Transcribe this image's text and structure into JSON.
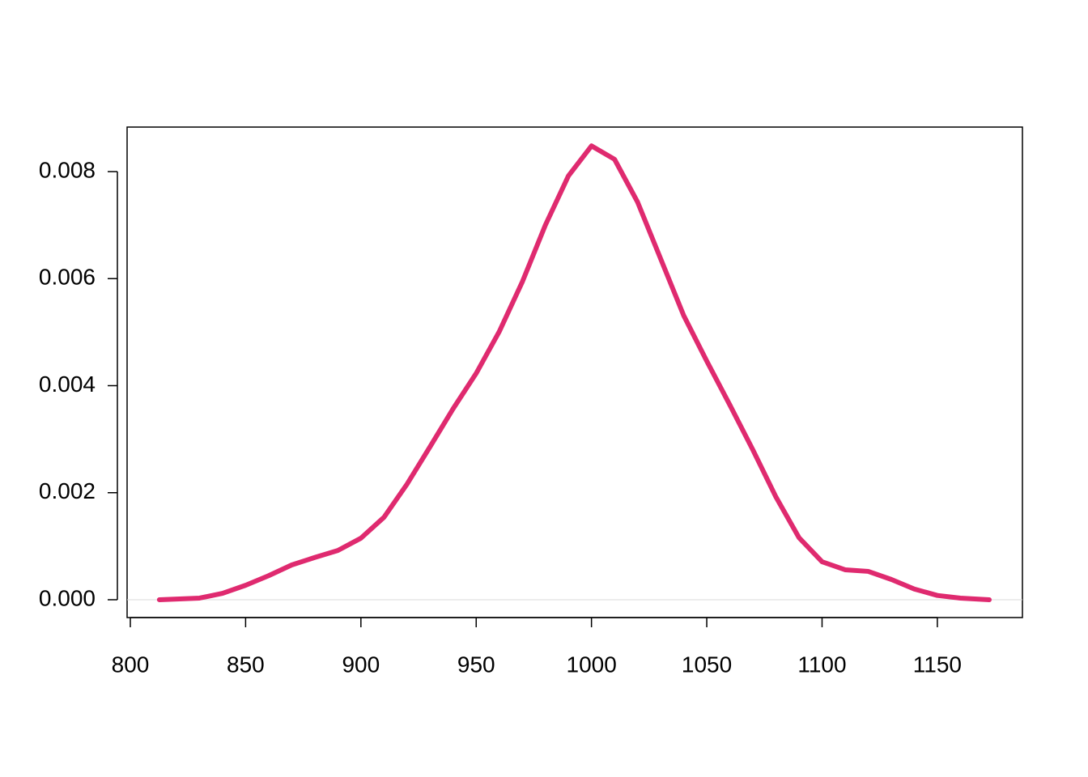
{
  "chart_data": {
    "type": "line",
    "x": [
      812.6,
      830,
      840,
      850,
      860,
      870,
      880,
      890,
      900,
      910,
      920,
      930,
      940,
      950,
      960,
      970,
      980,
      990,
      1000,
      1010,
      1020,
      1030,
      1040,
      1050,
      1060,
      1070,
      1080,
      1090,
      1100,
      1110,
      1120,
      1130,
      1140,
      1150,
      1160,
      1172.5
    ],
    "series": [
      {
        "color": "#df2a6f",
        "values": [
          0,
          3e-05,
          0.00012,
          0.00027,
          0.00045,
          0.00065,
          0.00079,
          0.00092,
          0.00115,
          0.00154,
          0.00216,
          0.00286,
          0.00357,
          0.00423,
          0.00501,
          0.00594,
          0.007,
          0.00792,
          0.00848,
          0.00823,
          0.00743,
          0.00637,
          0.00531,
          0.00446,
          0.00364,
          0.0028,
          0.00192,
          0.00116,
          0.00071,
          0.00056,
          0.00053,
          0.00038,
          0.0002,
          8e-05,
          3e-05,
          0
        ]
      }
    ],
    "xlim": [
      798.6,
      1186.9
    ],
    "ylim": [
      -0.000333,
      0.008832
    ],
    "xticks": [
      800,
      850,
      900,
      950,
      1000,
      1050,
      1100,
      1150
    ],
    "yticks": [
      {
        "value": 0,
        "label": "0.000"
      },
      0.002,
      0.004,
      0.006,
      0.008
    ],
    "zero_line": true
  }
}
